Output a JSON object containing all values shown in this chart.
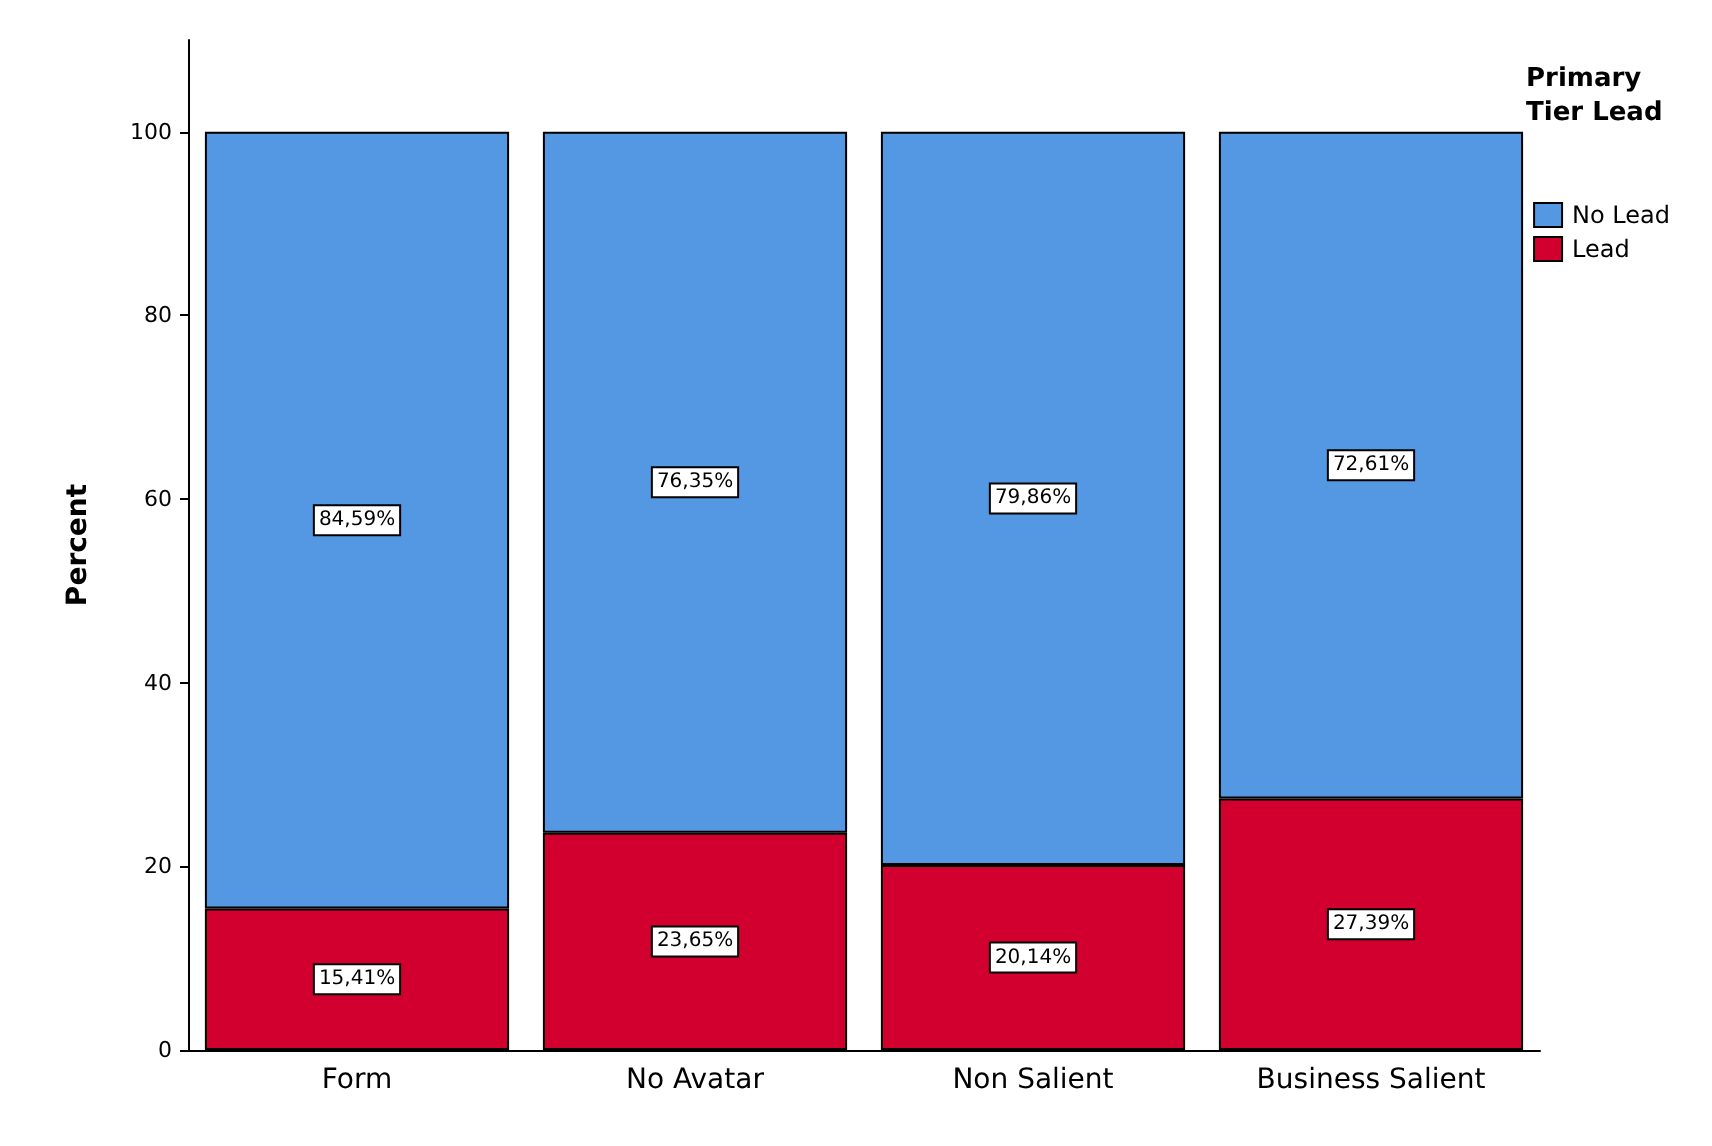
{
  "chart_data": {
    "type": "bar",
    "stacked": true,
    "ylabel": "Percent",
    "legend_title": "Primary Tier Lead",
    "legend": "top right",
    "categories": [
      "Form",
      "No Avatar",
      "Non Salient",
      "Business Salient"
    ],
    "series": [
      {
        "name": "Lead",
        "color": "#d2002f",
        "values": [
          15.41,
          23.65,
          20.14,
          27.39
        ],
        "value_labels": [
          "15,41%",
          "23,65%",
          "20,14%",
          "27,39%"
        ]
      },
      {
        "name": "No Lead",
        "color": "#5497e3",
        "values": [
          84.59,
          76.35,
          79.86,
          72.61
        ],
        "value_labels": [
          "84,59%",
          "76,35%",
          "79,86%",
          "72,61%"
        ]
      }
    ],
    "ylim": [
      0,
      110
    ],
    "yticks": [
      0,
      20,
      40,
      60,
      80,
      100
    ],
    "grid": false
  }
}
